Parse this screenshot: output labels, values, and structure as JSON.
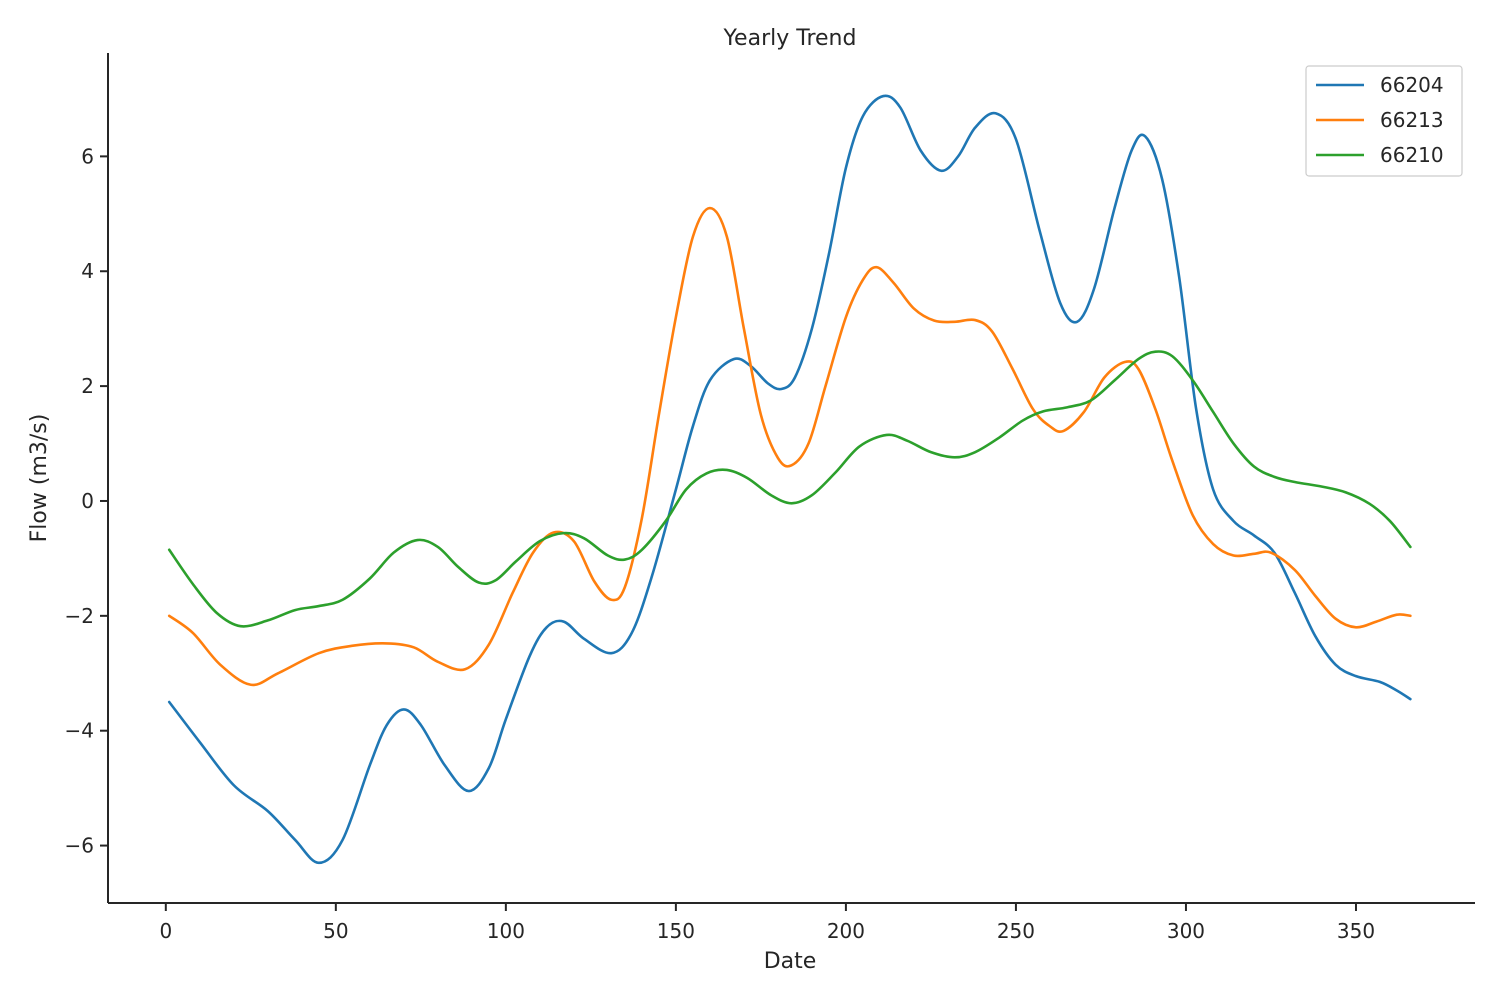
{
  "chart_data": {
    "type": "line",
    "title": "Yearly Trend",
    "xlabel": "Date",
    "ylabel": "Flow (m3/s)",
    "xlim": [
      -17,
      385
    ],
    "ylim": [
      -7.0,
      7.8
    ],
    "xticks": [
      0,
      50,
      100,
      150,
      200,
      250,
      300,
      350
    ],
    "yticks": [
      -6,
      -4,
      -2,
      0,
      2,
      4,
      6
    ],
    "grid": false,
    "legend_position": "top-right",
    "series": [
      {
        "name": "66204",
        "color": "#1f77b4",
        "points": [
          [
            1,
            -3.5
          ],
          [
            10,
            -4.2
          ],
          [
            20,
            -4.95
          ],
          [
            30,
            -5.4
          ],
          [
            38,
            -5.9
          ],
          [
            45,
            -6.3
          ],
          [
            52,
            -5.9
          ],
          [
            60,
            -4.6
          ],
          [
            65,
            -3.9
          ],
          [
            70,
            -3.63
          ],
          [
            75,
            -3.9
          ],
          [
            82,
            -4.6
          ],
          [
            89,
            -5.05
          ],
          [
            95,
            -4.65
          ],
          [
            100,
            -3.8
          ],
          [
            107,
            -2.7
          ],
          [
            112,
            -2.2
          ],
          [
            117,
            -2.1
          ],
          [
            123,
            -2.4
          ],
          [
            131,
            -2.65
          ],
          [
            137,
            -2.3
          ],
          [
            143,
            -1.3
          ],
          [
            150,
            0.2
          ],
          [
            155,
            1.3
          ],
          [
            160,
            2.1
          ],
          [
            167,
            2.47
          ],
          [
            172,
            2.35
          ],
          [
            177,
            2.05
          ],
          [
            181,
            1.95
          ],
          [
            185,
            2.15
          ],
          [
            190,
            3.0
          ],
          [
            195,
            4.3
          ],
          [
            200,
            5.8
          ],
          [
            205,
            6.7
          ],
          [
            211,
            7.05
          ],
          [
            216,
            6.85
          ],
          [
            222,
            6.1
          ],
          [
            228,
            5.75
          ],
          [
            233,
            6.0
          ],
          [
            238,
            6.5
          ],
          [
            244,
            6.75
          ],
          [
            250,
            6.3
          ],
          [
            257,
            4.7
          ],
          [
            263,
            3.45
          ],
          [
            268,
            3.12
          ],
          [
            273,
            3.7
          ],
          [
            279,
            5.1
          ],
          [
            284,
            6.1
          ],
          [
            288,
            6.35
          ],
          [
            293,
            5.6
          ],
          [
            298,
            3.9
          ],
          [
            303,
            1.6
          ],
          [
            308,
            0.2
          ],
          [
            314,
            -0.35
          ],
          [
            320,
            -0.6
          ],
          [
            326,
            -0.9
          ],
          [
            332,
            -1.6
          ],
          [
            338,
            -2.35
          ],
          [
            344,
            -2.85
          ],
          [
            350,
            -3.05
          ],
          [
            357,
            -3.15
          ],
          [
            362,
            -3.3
          ],
          [
            366,
            -3.45
          ]
        ]
      },
      {
        "name": "66213",
        "color": "#ff7f0e",
        "points": [
          [
            1,
            -2.0
          ],
          [
            8,
            -2.3
          ],
          [
            16,
            -2.85
          ],
          [
            25,
            -3.2
          ],
          [
            33,
            -3.0
          ],
          [
            45,
            -2.65
          ],
          [
            55,
            -2.52
          ],
          [
            65,
            -2.48
          ],
          [
            73,
            -2.55
          ],
          [
            80,
            -2.8
          ],
          [
            88,
            -2.93
          ],
          [
            95,
            -2.5
          ],
          [
            102,
            -1.6
          ],
          [
            108,
            -0.9
          ],
          [
            114,
            -0.55
          ],
          [
            120,
            -0.7
          ],
          [
            126,
            -1.4
          ],
          [
            131,
            -1.72
          ],
          [
            135,
            -1.5
          ],
          [
            140,
            -0.3
          ],
          [
            145,
            1.5
          ],
          [
            150,
            3.2
          ],
          [
            155,
            4.6
          ],
          [
            160,
            5.1
          ],
          [
            165,
            4.6
          ],
          [
            170,
            3.0
          ],
          [
            175,
            1.5
          ],
          [
            180,
            0.75
          ],
          [
            184,
            0.62
          ],
          [
            189,
            1.0
          ],
          [
            194,
            2.0
          ],
          [
            200,
            3.2
          ],
          [
            205,
            3.85
          ],
          [
            209,
            4.07
          ],
          [
            214,
            3.8
          ],
          [
            220,
            3.35
          ],
          [
            226,
            3.14
          ],
          [
            232,
            3.12
          ],
          [
            238,
            3.15
          ],
          [
            243,
            2.95
          ],
          [
            249,
            2.3
          ],
          [
            255,
            1.6
          ],
          [
            260,
            1.3
          ],
          [
            264,
            1.22
          ],
          [
            270,
            1.55
          ],
          [
            276,
            2.15
          ],
          [
            282,
            2.42
          ],
          [
            286,
            2.3
          ],
          [
            291,
            1.6
          ],
          [
            296,
            0.7
          ],
          [
            302,
            -0.25
          ],
          [
            308,
            -0.75
          ],
          [
            314,
            -0.95
          ],
          [
            320,
            -0.92
          ],
          [
            325,
            -0.9
          ],
          [
            332,
            -1.2
          ],
          [
            338,
            -1.65
          ],
          [
            344,
            -2.05
          ],
          [
            350,
            -2.2
          ],
          [
            356,
            -2.1
          ],
          [
            362,
            -1.98
          ],
          [
            366,
            -2.0
          ]
        ]
      },
      {
        "name": "66210",
        "color": "#2ca02c",
        "points": [
          [
            1,
            -0.85
          ],
          [
            8,
            -1.45
          ],
          [
            15,
            -1.95
          ],
          [
            22,
            -2.18
          ],
          [
            30,
            -2.08
          ],
          [
            38,
            -1.9
          ],
          [
            45,
            -1.83
          ],
          [
            52,
            -1.72
          ],
          [
            60,
            -1.35
          ],
          [
            67,
            -0.9
          ],
          [
            74,
            -0.68
          ],
          [
            80,
            -0.8
          ],
          [
            86,
            -1.15
          ],
          [
            92,
            -1.42
          ],
          [
            97,
            -1.38
          ],
          [
            103,
            -1.05
          ],
          [
            110,
            -0.7
          ],
          [
            117,
            -0.56
          ],
          [
            123,
            -0.65
          ],
          [
            130,
            -0.95
          ],
          [
            135,
            -1.02
          ],
          [
            140,
            -0.85
          ],
          [
            147,
            -0.35
          ],
          [
            153,
            0.2
          ],
          [
            159,
            0.48
          ],
          [
            165,
            0.54
          ],
          [
            171,
            0.4
          ],
          [
            178,
            0.1
          ],
          [
            184,
            -0.04
          ],
          [
            190,
            0.1
          ],
          [
            197,
            0.5
          ],
          [
            204,
            0.95
          ],
          [
            212,
            1.15
          ],
          [
            218,
            1.05
          ],
          [
            225,
            0.85
          ],
          [
            232,
            0.76
          ],
          [
            238,
            0.85
          ],
          [
            245,
            1.1
          ],
          [
            252,
            1.4
          ],
          [
            258,
            1.56
          ],
          [
            265,
            1.63
          ],
          [
            272,
            1.75
          ],
          [
            279,
            2.1
          ],
          [
            286,
            2.47
          ],
          [
            291,
            2.6
          ],
          [
            296,
            2.52
          ],
          [
            302,
            2.1
          ],
          [
            308,
            1.55
          ],
          [
            314,
            1.0
          ],
          [
            320,
            0.6
          ],
          [
            326,
            0.42
          ],
          [
            332,
            0.33
          ],
          [
            340,
            0.25
          ],
          [
            347,
            0.15
          ],
          [
            354,
            -0.05
          ],
          [
            360,
            -0.35
          ],
          [
            366,
            -0.8
          ]
        ]
      }
    ]
  }
}
